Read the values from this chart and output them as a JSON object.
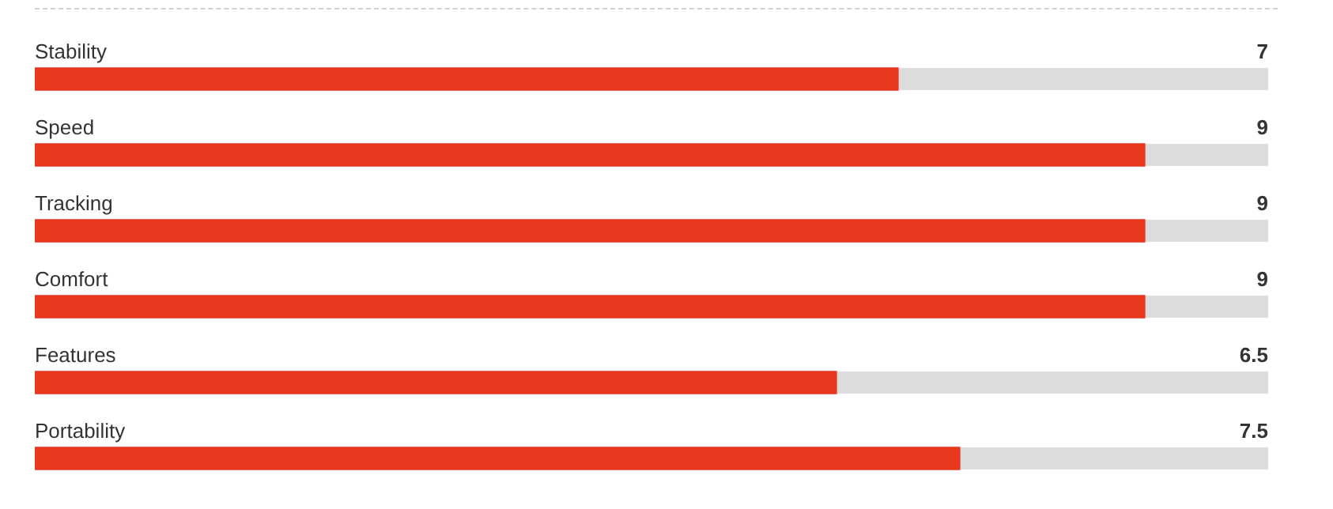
{
  "chart_data": {
    "type": "bar",
    "orientation": "horizontal",
    "categories": [
      "Stability",
      "Speed",
      "Tracking",
      "Comfort",
      "Features",
      "Portability"
    ],
    "values": [
      7,
      9,
      9,
      9,
      6.5,
      7.5
    ],
    "color": "#e8391e",
    "xlim": [
      0,
      10
    ],
    "data_labels": true
  }
}
